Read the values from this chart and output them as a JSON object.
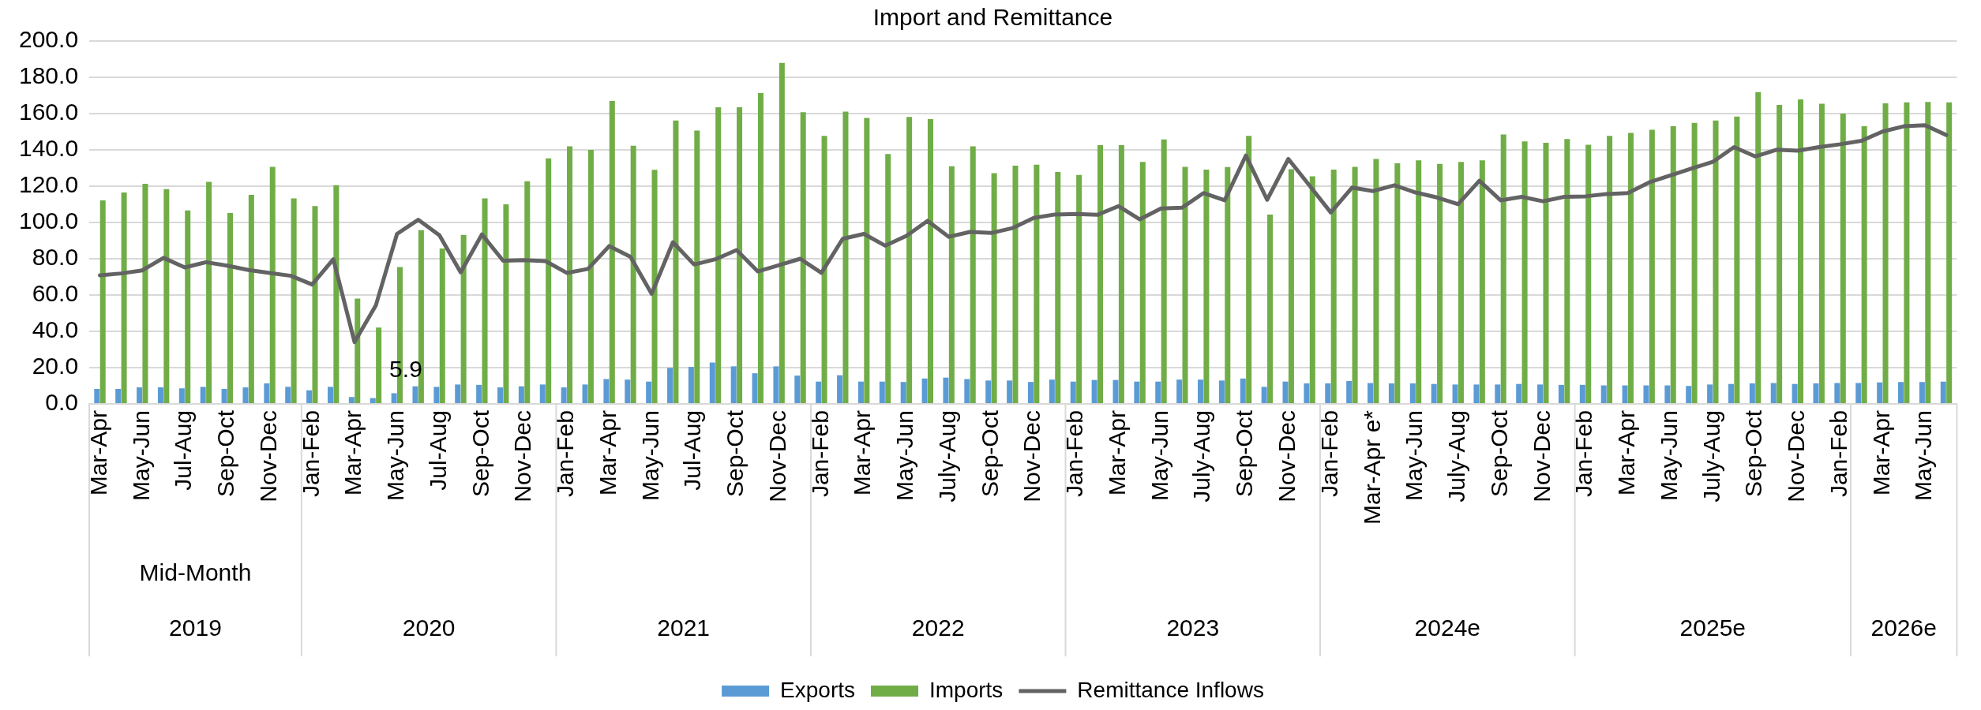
{
  "chart_data": {
    "type": "bar",
    "title": "Import and Remittance",
    "categories": [
      "Mar-Apr",
      null,
      "May-Jun",
      null,
      "Jul-Aug",
      null,
      "Sep-Oct",
      null,
      "Nov-Dec",
      null,
      "Jan-Feb",
      null,
      "Mar-Apr",
      null,
      "May-Jun",
      null,
      "Jul-Aug",
      null,
      "Sep-Oct",
      null,
      "Nov-Dec",
      null,
      "Jan-Feb",
      null,
      "Mar-Apr",
      null,
      "May-Jun",
      null,
      "Jul-Aug",
      null,
      "Sep-Oct",
      null,
      "Nov-Dec",
      null,
      "Jan-Feb",
      null,
      "Mar-Apr",
      null,
      "May-Jun",
      null,
      "July-Aug",
      null,
      "Sep-Oct",
      null,
      "Nov-Dec",
      null,
      "Jan-Feb",
      null,
      "Mar-Apr",
      null,
      "May-Jun",
      null,
      "July-Aug",
      null,
      "Sep-Oct",
      null,
      "Nov-Dec",
      null,
      "Jan-Feb",
      null,
      "Mar-Apr e*",
      null,
      "May-Jun",
      null,
      "July-Aug",
      null,
      "Sep-Oct",
      null,
      "Nov-Dec",
      null,
      "Jan-Feb",
      null,
      "Mar-Apr",
      null,
      "May-Jun",
      null,
      "July-Aug",
      null,
      "Sep-Oct",
      null,
      "Nov-Dec",
      null,
      "Jan-Feb",
      null,
      "Mar-Apr",
      null,
      "May-Jun",
      null
    ],
    "series": [
      {
        "name": "Exports",
        "color": "#5b9bd5",
        "values": [
          8.3,
          8.3,
          9.1,
          9.1,
          8.6,
          9.4,
          8.3,
          9.1,
          11.3,
          9.4,
          7.5,
          9.4,
          3.8,
          3.2,
          5.9,
          9.7,
          9.4,
          10.7,
          10.5,
          9.1,
          9.7,
          10.7,
          9.1,
          10.7,
          13.7,
          13.4,
          12.3,
          19.9,
          20.4,
          22.8,
          20.7,
          16.9,
          20.7,
          15.6,
          12.3,
          15.8,
          12.3,
          12.3,
          12.1,
          14.0,
          14.5,
          13.7,
          12.9,
          12.9,
          12.1,
          13.4,
          12.3,
          13.2,
          13.2,
          12.3,
          12.3,
          13.4,
          13.4,
          12.9,
          14.0,
          9.4,
          12.3,
          11.3,
          11.3,
          12.6,
          11.5,
          11.3,
          11.3,
          11.0,
          10.7,
          10.7,
          10.7,
          11.0,
          10.7,
          10.5,
          10.5,
          10.2,
          10.2,
          10.2,
          10.2,
          9.9,
          10.7,
          11.0,
          11.3,
          11.5,
          11.0,
          11.3,
          11.5,
          11.5,
          11.8,
          12.1,
          12.1,
          12.3
        ],
        "value_labels": [
          null,
          null,
          null,
          null,
          null,
          null,
          null,
          null,
          null,
          null,
          null,
          null,
          null,
          null,
          "5.9",
          null,
          null,
          null,
          null,
          null,
          null,
          null,
          null,
          null,
          null,
          null,
          null,
          null,
          null,
          null,
          null,
          null,
          null,
          null,
          null,
          null,
          null,
          null,
          null,
          null,
          null,
          null,
          null,
          null,
          null,
          null,
          null,
          null,
          null,
          null,
          null,
          null,
          null,
          null,
          null,
          null,
          null,
          null,
          null,
          null,
          null,
          null,
          null,
          null,
          null,
          null,
          null,
          null,
          null,
          null,
          null,
          null,
          null,
          null,
          null,
          null,
          null,
          null,
          null,
          null,
          null,
          null,
          null,
          null,
          null,
          null,
          null,
          null
        ]
      },
      {
        "name": "Imports",
        "color": "#70ad47",
        "values": [
          112.2,
          116.5,
          121.3,
          118.4,
          106.6,
          122.4,
          105.2,
          115.2,
          130.7,
          113.3,
          109.0,
          120.5,
          58.0,
          42.1,
          75.4,
          95.8,
          85.6,
          93.2,
          113.3,
          110.0,
          122.7,
          135.3,
          142.0,
          140.0,
          167.0,
          142.3,
          129.0,
          156.2,
          150.6,
          163.5,
          163.5,
          171.3,
          187.9,
          160.8,
          147.7,
          161.1,
          157.6,
          137.7,
          158.1,
          157.0,
          131.0,
          142.0,
          127.2,
          131.3,
          131.8,
          127.8,
          126.2,
          142.6,
          142.6,
          133.4,
          145.8,
          130.7,
          129.1,
          130.5,
          147.7,
          104.4,
          129.4,
          125.4,
          129.1,
          130.7,
          135.0,
          132.6,
          134.2,
          132.3,
          133.4,
          134.2,
          148.5,
          144.7,
          143.9,
          146.0,
          142.8,
          147.7,
          149.3,
          151.1,
          153.0,
          154.9,
          156.2,
          158.4,
          171.8,
          164.8,
          167.8,
          165.4,
          160.0,
          153.0,
          165.6,
          166.2,
          166.4,
          166.2
        ]
      },
      {
        "name": "Remittance Inflows",
        "type": "line",
        "color": "#636363",
        "values": [
          70.9,
          71.9,
          73.6,
          80.5,
          75.2,
          78.1,
          76.2,
          73.8,
          72.2,
          70.6,
          65.8,
          79.7,
          34.1,
          54.2,
          93.7,
          101.5,
          92.9,
          72.5,
          93.4,
          78.9,
          79.2,
          78.7,
          72.2,
          74.4,
          87.0,
          81.1,
          60.7,
          89.1,
          76.8,
          79.7,
          84.8,
          73.0,
          76.5,
          80.0,
          72.2,
          91.0,
          93.7,
          87.2,
          92.6,
          100.9,
          92.1,
          94.8,
          94.2,
          96.9,
          102.5,
          104.4,
          104.7,
          104.2,
          109.0,
          101.7,
          107.7,
          108.2,
          116.2,
          112.2,
          136.9,
          112.5,
          135.0,
          120.3,
          105.5,
          119.2,
          117.3,
          120.5,
          116.5,
          113.8,
          110.1,
          123.0,
          112.2,
          114.1,
          111.7,
          114.1,
          114.4,
          115.7,
          116.2,
          122.1,
          125.9,
          129.7,
          133.4,
          141.5,
          136.4,
          140.1,
          139.6,
          141.5,
          143.1,
          145.0,
          150.1,
          153.0,
          153.6,
          148.2
        ]
      }
    ],
    "ylim": [
      0,
      200
    ],
    "yticks": [
      {
        "value": 0,
        "label": "0.0"
      },
      {
        "value": 20,
        "label": "20.0"
      },
      {
        "value": 40,
        "label": "40.0"
      },
      {
        "value": 60,
        "label": "60.0"
      },
      {
        "value": 80,
        "label": "80.0"
      },
      {
        "value": 100,
        "label": "100.0"
      },
      {
        "value": 120,
        "label": "120.0"
      },
      {
        "value": 140,
        "label": "140.0"
      },
      {
        "value": 160,
        "label": "160.0"
      },
      {
        "value": 180,
        "label": "180.0"
      },
      {
        "value": 200,
        "label": "200.0"
      }
    ],
    "annotations": [
      "Mid-Month",
      "2019",
      "2020",
      "2021",
      "2022",
      "2023",
      "2024e",
      "2025e",
      "2026e"
    ],
    "grid": "y",
    "legend": "bottom",
    "marker": "none",
    "line_style": "solid"
  }
}
